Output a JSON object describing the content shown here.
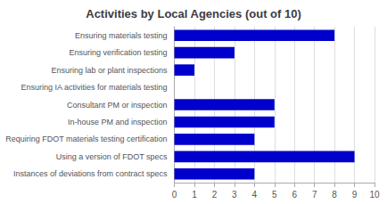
{
  "chart_data": {
    "type": "bar",
    "orientation": "horizontal",
    "title": "Activities by Local Agencies (out of 10)",
    "categories": [
      "Ensuring materials testing",
      "Ensuring verification testing",
      "Ensuring lab or plant inspections",
      "Ensuring IA activities for materials testing",
      "Consultant PM or inspection",
      "In-house PM and inspection",
      "Requiring FDOT materials testing certification",
      "Using a version of FDOT specs",
      "Instances of deviations from contract specs"
    ],
    "values": [
      8,
      3,
      1,
      0,
      5,
      5,
      4,
      9,
      4
    ],
    "color": "#0000cc",
    "xlim": [
      0,
      10
    ],
    "xticks": [
      0,
      1,
      2,
      3,
      4,
      5,
      6,
      7,
      8,
      9,
      10
    ],
    "grid": true
  }
}
